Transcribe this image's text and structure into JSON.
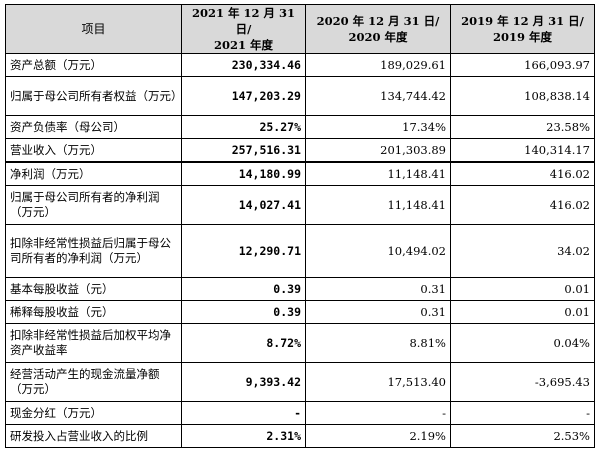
{
  "header": {
    "item": "项目",
    "col2021_line1": "2021 年 12 月 31 日/",
    "col2021_line2": "2021 年度",
    "col2020_line1": "2020 年 12 月 31 日/",
    "col2020_line2": "2020 年度",
    "col2019_line1": "2019 年 12 月 31 日/",
    "col2019_line2": "2019 年度"
  },
  "rows": [
    {
      "label": "资产总额（万元）",
      "v2021": "230,334.46",
      "v2020": "189,029.61",
      "v2019": "166,093.97"
    },
    {
      "label": "归属于母公司所有者权益（万元）",
      "v2021": "147,203.29",
      "v2020": "134,744.42",
      "v2019": "108,838.14"
    },
    {
      "label": "资产负债率（母公司）",
      "v2021": "25.27%",
      "v2020": "17.34%",
      "v2019": "23.58%"
    },
    {
      "label": "营业收入（万元）",
      "v2021": "257,516.31",
      "v2020": "201,303.89",
      "v2019": "140,314.17"
    },
    {
      "label": "净利润（万元）",
      "v2021": "14,180.99",
      "v2020": "11,148.41",
      "v2019": "416.02"
    },
    {
      "label": "归属于母公司所有者的净利润（万元）",
      "v2021": "14,027.41",
      "v2020": "11,148.41",
      "v2019": "416.02"
    },
    {
      "label": "扣除非经常性损益后归属于母公司所有者的净利润（万元）",
      "v2021": "12,290.71",
      "v2020": "10,494.02",
      "v2019": "34.02"
    },
    {
      "label": "基本每股收益（元）",
      "v2021": "0.39",
      "v2020": "0.31",
      "v2019": "0.01"
    },
    {
      "label": "稀释每股收益（元）",
      "v2021": "0.39",
      "v2020": "0.31",
      "v2019": "0.01"
    },
    {
      "label": "扣除非经常性损益后加权平均净资产收益率",
      "v2021": "8.72%",
      "v2020": "8.81%",
      "v2019": "0.04%"
    },
    {
      "label": "经营活动产生的现金流量净额（万元）",
      "v2021": "9,393.42",
      "v2020": "17,513.40",
      "v2019": "-3,695.43"
    },
    {
      "label": "现金分红（万元）",
      "v2021": "-",
      "v2020": "-",
      "v2019": "-"
    },
    {
      "label": "研发投入占营业收入的比例",
      "v2021": "2.31%",
      "v2020": "2.19%",
      "v2019": "2.53%"
    }
  ]
}
